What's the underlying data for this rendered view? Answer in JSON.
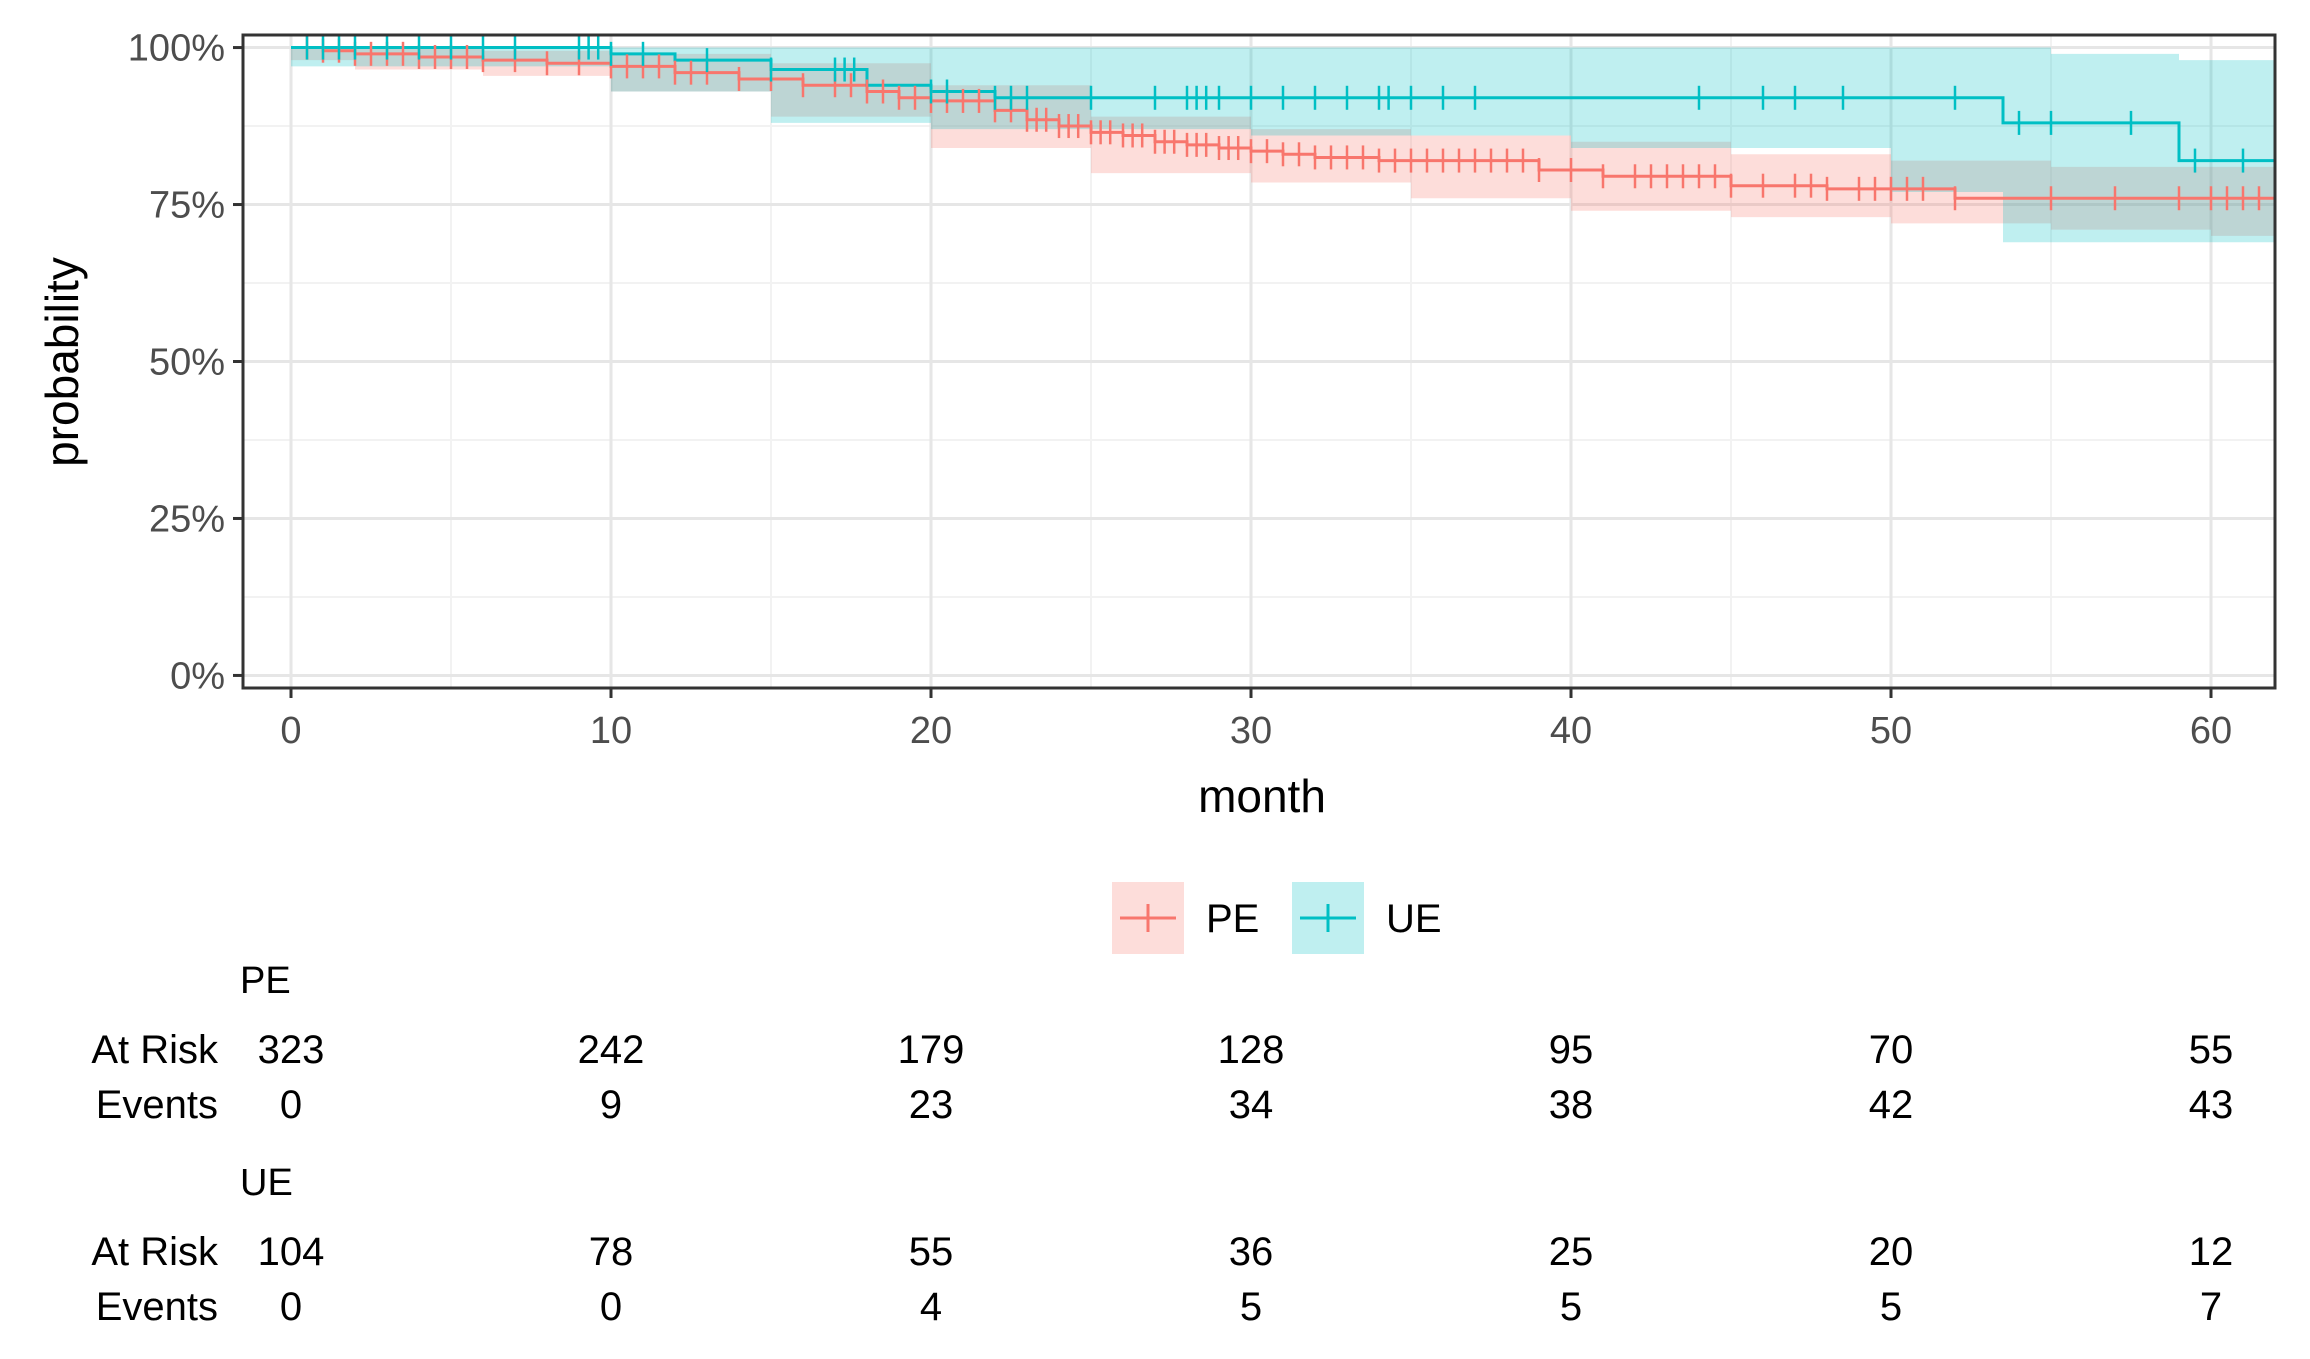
{
  "chart_data": {
    "type": "line",
    "subtype": "kaplan-meier survival curve with confidence bands, censor marks and risk table",
    "xlabel": "month",
    "ylabel": "probability",
    "xlim": [
      -1.5,
      62
    ],
    "ylim": [
      -0.02,
      1.02
    ],
    "x_ticks": [
      0,
      10,
      20,
      30,
      40,
      50,
      60
    ],
    "x_tick_labels": [
      "0",
      "10",
      "20",
      "30",
      "40",
      "50",
      "60"
    ],
    "y_ticks": [
      0,
      0.25,
      0.5,
      0.75,
      1.0
    ],
    "y_tick_labels": [
      "0%",
      "25%",
      "50%",
      "75%",
      "100%"
    ],
    "grid": true,
    "legend_position": "bottom",
    "series": [
      {
        "name": "PE",
        "color": "#F8766D",
        "band_color": "#F8766D",
        "steps": [
          [
            0,
            1.0
          ],
          [
            1,
            0.995
          ],
          [
            2,
            0.99
          ],
          [
            4,
            0.985
          ],
          [
            6,
            0.98
          ],
          [
            8,
            0.975
          ],
          [
            10,
            0.97
          ],
          [
            12,
            0.96
          ],
          [
            14,
            0.95
          ],
          [
            16,
            0.94
          ],
          [
            18,
            0.93
          ],
          [
            19,
            0.92
          ],
          [
            20,
            0.915
          ],
          [
            22,
            0.9
          ],
          [
            23,
            0.885
          ],
          [
            24,
            0.875
          ],
          [
            25,
            0.865
          ],
          [
            26,
            0.86
          ],
          [
            27,
            0.85
          ],
          [
            28,
            0.845
          ],
          [
            29,
            0.84
          ],
          [
            30,
            0.835
          ],
          [
            31,
            0.83
          ],
          [
            32,
            0.825
          ],
          [
            34,
            0.82
          ],
          [
            39,
            0.805
          ],
          [
            41,
            0.795
          ],
          [
            45,
            0.78
          ],
          [
            48,
            0.775
          ],
          [
            52,
            0.76
          ],
          [
            62,
            0.76
          ]
        ],
        "lower": [
          [
            0,
            1.0
          ],
          [
            2,
            0.98
          ],
          [
            6,
            0.965
          ],
          [
            10,
            0.955
          ],
          [
            15,
            0.93
          ],
          [
            20,
            0.89
          ],
          [
            25,
            0.84
          ],
          [
            30,
            0.8
          ],
          [
            35,
            0.785
          ],
          [
            40,
            0.76
          ],
          [
            45,
            0.74
          ],
          [
            50,
            0.73
          ],
          [
            55,
            0.72
          ],
          [
            60,
            0.71
          ],
          [
            62,
            0.7
          ]
        ],
        "upper": [
          [
            0,
            1.0
          ],
          [
            2,
            1.0
          ],
          [
            6,
            0.995
          ],
          [
            10,
            0.99
          ],
          [
            15,
            0.975
          ],
          [
            20,
            0.94
          ],
          [
            25,
            0.89
          ],
          [
            30,
            0.87
          ],
          [
            35,
            0.86
          ],
          [
            40,
            0.85
          ],
          [
            45,
            0.83
          ],
          [
            50,
            0.82
          ],
          [
            55,
            0.81
          ],
          [
            60,
            0.81
          ],
          [
            62,
            0.81
          ]
        ],
        "censor_times": [
          0.5,
          1,
          1.5,
          2,
          2.5,
          3,
          3.5,
          4,
          4.5,
          5,
          5.5,
          6,
          7,
          8,
          9,
          10,
          10.5,
          11,
          11.5,
          12,
          12.5,
          13,
          14,
          15,
          16,
          17,
          17.5,
          18,
          18.5,
          19,
          19.5,
          20,
          20.5,
          21,
          21.5,
          22,
          22.5,
          23,
          23.3,
          23.6,
          24,
          24.3,
          24.6,
          25,
          25.3,
          25.6,
          26,
          26.3,
          26.6,
          27,
          27.3,
          27.6,
          28,
          28.3,
          28.6,
          29,
          29.3,
          29.6,
          30,
          30.5,
          31,
          31.5,
          32,
          32.5,
          33,
          33.5,
          34,
          34.5,
          35,
          35.5,
          36,
          36.5,
          37,
          37.5,
          38,
          38.5,
          39,
          40,
          41,
          42,
          42.5,
          43,
          43.5,
          44,
          44.5,
          45,
          46,
          47,
          47.5,
          48,
          49,
          49.5,
          50,
          50.5,
          51,
          52,
          55,
          57,
          59,
          60,
          60.5,
          61,
          61.5
        ],
        "risk_table": {
          "label": "PE",
          "times": [
            0,
            10,
            20,
            30,
            40,
            50,
            60
          ],
          "at_risk": [
            "323",
            "242",
            "179",
            "128",
            "95",
            "70",
            "55"
          ],
          "events": [
            "0",
            "9",
            "23",
            "34",
            "38",
            "42",
            "43"
          ]
        }
      },
      {
        "name": "UE",
        "color": "#00BFC4",
        "band_color": "#00BFC4",
        "steps": [
          [
            0,
            1.0
          ],
          [
            10,
            0.99
          ],
          [
            12,
            0.98
          ],
          [
            15,
            0.965
          ],
          [
            18,
            0.94
          ],
          [
            20,
            0.93
          ],
          [
            22,
            0.92
          ],
          [
            53.5,
            0.88
          ],
          [
            59,
            0.82
          ],
          [
            62,
            0.82
          ]
        ],
        "lower": [
          [
            0,
            1.0
          ],
          [
            10,
            0.97
          ],
          [
            15,
            0.93
          ],
          [
            20,
            0.88
          ],
          [
            30,
            0.87
          ],
          [
            40,
            0.86
          ],
          [
            50,
            0.84
          ],
          [
            53.5,
            0.77
          ],
          [
            59,
            0.69
          ],
          [
            62,
            0.69
          ]
        ],
        "upper": [
          [
            0,
            1.0
          ],
          [
            20,
            1.0
          ],
          [
            53.5,
            1.0
          ],
          [
            55,
            0.99
          ],
          [
            59,
            0.98
          ],
          [
            62,
            0.98
          ]
        ],
        "censor_times": [
          0.5,
          1,
          1.5,
          2,
          3,
          4,
          5,
          6,
          7,
          9,
          9.3,
          9.6,
          10,
          11,
          13,
          15,
          17,
          17.3,
          17.6,
          20,
          20.5,
          22,
          22.5,
          23,
          25,
          27,
          28,
          28.3,
          28.6,
          29,
          30,
          31,
          32,
          33,
          34,
          34.3,
          35,
          36,
          37,
          44,
          46,
          47,
          48.5,
          52,
          54,
          55,
          57.5,
          59.5,
          61
        ],
        "risk_table": {
          "label": "UE",
          "times": [
            0,
            10,
            20,
            30,
            40,
            50,
            60
          ],
          "at_risk": [
            "104",
            "78",
            "55",
            "36",
            "25",
            "20",
            "12"
          ],
          "events": [
            "0",
            "0",
            "4",
            "5",
            "5",
            "5",
            "7"
          ]
        }
      }
    ],
    "risk_row_labels": {
      "at_risk": "At Risk",
      "events": "Events"
    }
  }
}
